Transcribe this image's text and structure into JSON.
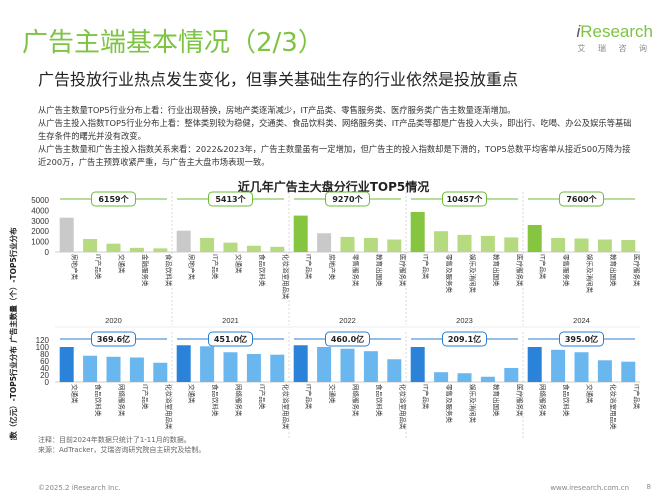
{
  "title": "广告主端基本情况（2/3）",
  "logo": {
    "brand_i": "i",
    "brand_rest": "Research",
    "tagline": "艾 瑞 咨 询"
  },
  "subtitle": "广告投放行业热点发生变化，但事关基础生存的行业依然是投放重点",
  "bullets": [
    "从广告主数量TOP5行业分布上看：行业出现替换，房地产类逐渐减少，IT产品类、零售服务类、医疗服务类广告主数量逐渐增加。",
    "从广告主投入指数TOP5行业分布上看：整体类别较为稳健，交通类、食品饮料类、网络服务类、IT产品类等都是广告投入大头，即出行、吃喝、办公及娱乐等基础生存条件的曙光并没有改变。",
    "从广告主数量和广告主投入指数关系来看：2022&2023年，广告主数量虽有一定增加，但广告主的投入指数却是下滑的，TOP5总数平均客单从接近500万降为接近200万，广告主预算收紧严重，与广告主大盘市场表现一致。"
  ],
  "footer": {
    "note": "注释：目前2024年数据只统计了1-11月的数据。",
    "source": "来源：AdTracker，艾瑞咨询研究院自主研究及绘制。",
    "copyright": "©2025.2 iResearch Inc.",
    "website": "www.iresearch.com.cn",
    "page": "8"
  },
  "chart_data": [
    {
      "type": "bar",
      "title": "近几年广告主大盘分行业TOP5情况",
      "ylabel": "广告主数量（个）-TOP5行业分布",
      "ylim": [
        0,
        5000
      ],
      "yticks": [
        0,
        1000,
        2000,
        3000,
        4000,
        5000
      ],
      "groups": [
        {
          "year": "2020",
          "total": "6159个",
          "categories": [
            "房地产类",
            "IT产品类",
            "交通类",
            "金融服务类",
            "食品饮料类"
          ],
          "values": [
            3300,
            1250,
            800,
            400,
            350
          ]
        },
        {
          "year": "2021",
          "total": "5413个",
          "categories": [
            "房地产类",
            "IT产品类",
            "交通类",
            "食品饮料类",
            "化妆浴室用品类"
          ],
          "values": [
            2050,
            1350,
            900,
            600,
            500
          ]
        },
        {
          "year": "2022",
          "total": "9270个",
          "categories": [
            "IT产品类",
            "房地产类",
            "零售服务类",
            "教育出国类",
            "医疗服务类"
          ],
          "values": [
            3500,
            1800,
            1450,
            1350,
            1200
          ]
        },
        {
          "year": "2023",
          "total": "10457个",
          "categories": [
            "IT产品类",
            "零售及服务类",
            "娱乐及消闲类",
            "教育出国类",
            "医疗服务类"
          ],
          "values": [
            3850,
            2000,
            1650,
            1550,
            1400
          ]
        },
        {
          "year": "2024",
          "total": "7600个",
          "categories": [
            "IT产品类",
            "零售服务类",
            "娱乐及消闲类",
            "教育出国类",
            "医疗服务类"
          ],
          "values": [
            2600,
            1350,
            1300,
            1200,
            1150
          ]
        }
      ]
    },
    {
      "type": "bar",
      "ylabel": "广告主投入指数（亿元）-TOP5行业分布",
      "ylim": [
        0,
        120
      ],
      "yticks": [
        0,
        20,
        40,
        60,
        80,
        100,
        120
      ],
      "groups": [
        {
          "year": "2020",
          "total": "369.6亿",
          "categories": [
            "交通类",
            "食品饮料类",
            "网络服务类",
            "IT产品类",
            "化妆浴室用品类"
          ],
          "values": [
            100,
            75,
            72,
            70,
            55
          ]
        },
        {
          "year": "2021",
          "total": "451.0亿",
          "categories": [
            "交通类",
            "食品饮料类",
            "网络服务类",
            "IT产品类",
            "化妆浴室用品类"
          ],
          "values": [
            105,
            102,
            85,
            80,
            78
          ]
        },
        {
          "year": "2022",
          "total": "460.0亿",
          "categories": [
            "IT产品类",
            "交通类",
            "网络服务类",
            "食品饮料类",
            "化妆浴室用品类"
          ],
          "values": [
            105,
            100,
            95,
            88,
            65
          ]
        },
        {
          "year": "2023",
          "total": "209.1亿",
          "categories": [
            "IT产品类",
            "零售及服务类",
            "娱乐及消闲类",
            "教育出国类",
            "医疗服务类"
          ],
          "values": [
            100,
            28,
            25,
            15,
            40
          ]
        },
        {
          "year": "2024",
          "total": "395.0亿",
          "categories": [
            "网络服务类",
            "食品饮料类",
            "交通类",
            "化妆浴室用品类",
            "IT产品类"
          ],
          "values": [
            100,
            92,
            85,
            62,
            58
          ]
        }
      ]
    }
  ]
}
